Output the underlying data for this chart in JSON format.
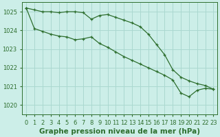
{
  "background_color": "#cceee8",
  "grid_color": "#aad8d0",
  "line_color": "#2d6e2d",
  "marker_color": "#2d6e2d",
  "xlabel": "Graphe pression niveau de la mer (hPa)",
  "ylim": [
    1019.5,
    1025.5
  ],
  "yticks": [
    1020,
    1021,
    1022,
    1023,
    1024,
    1025
  ],
  "xlim": [
    -0.5,
    23.5
  ],
  "xticks": [
    0,
    1,
    2,
    3,
    4,
    5,
    6,
    7,
    8,
    9,
    10,
    11,
    12,
    13,
    14,
    15,
    16,
    17,
    18,
    19,
    20,
    21,
    22,
    23
  ],
  "series1": [
    1025.2,
    1025.1,
    1025.0,
    1025.0,
    1024.95,
    1025.0,
    1025.0,
    1024.95,
    1024.6,
    1024.8,
    1024.85,
    1024.7,
    1024.55,
    1024.4,
    1024.2,
    1023.8,
    1023.25,
    1022.7,
    1021.9,
    1021.5,
    1021.3,
    1021.15,
    1021.05,
    1020.85
  ],
  "series2": [
    1025.2,
    1024.1,
    1023.95,
    1023.8,
    1023.7,
    1023.65,
    1023.5,
    1023.55,
    1023.65,
    1023.3,
    1023.1,
    1022.85,
    1022.6,
    1022.4,
    1022.2,
    1022.0,
    1021.8,
    1021.6,
    1021.35,
    1020.65,
    1020.45,
    1020.8,
    1020.9,
    1020.85
  ],
  "title_fontsize": 7.5,
  "tick_fontsize": 6
}
